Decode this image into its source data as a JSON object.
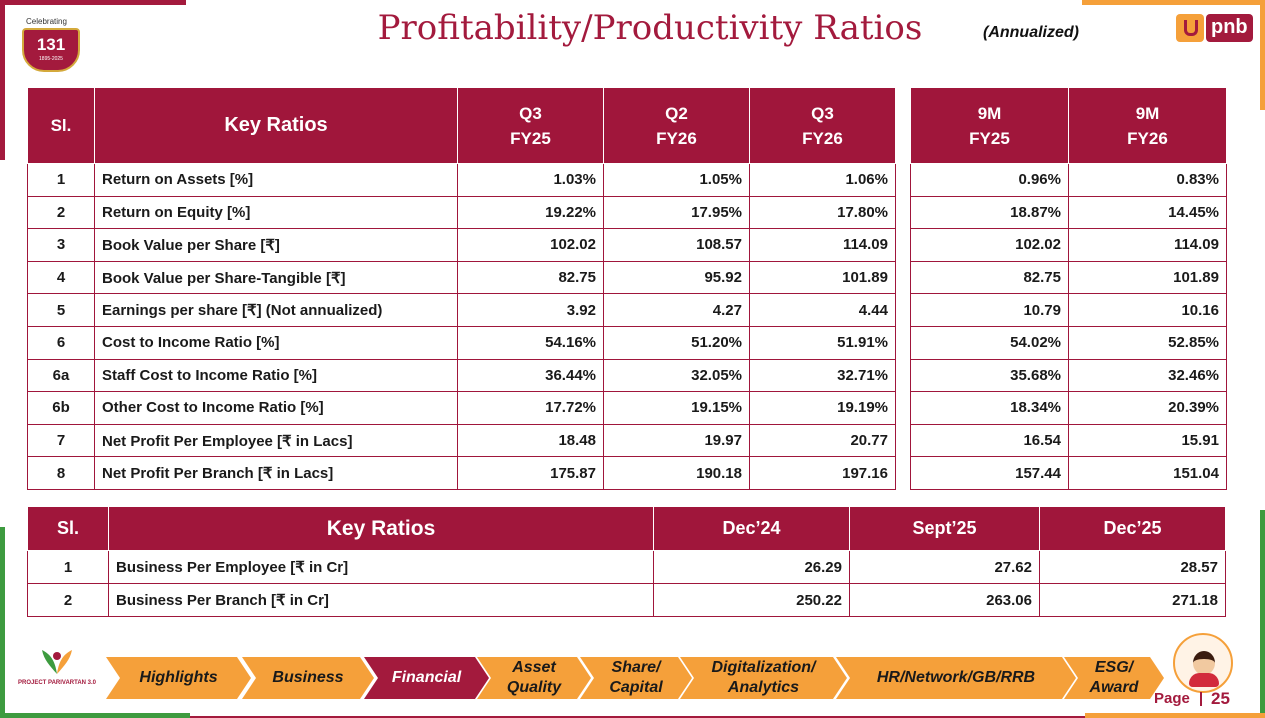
{
  "header": {
    "badge_top": "Celebrating",
    "badge_number": "131",
    "badge_years": "1895-2025",
    "title": "Profitability/Productivity Ratios",
    "note": "(Annualized)",
    "logo_text": "pnb"
  },
  "table1": {
    "headers": {
      "sl": "Sl.",
      "key": "Key Ratios",
      "c1a": "Q3",
      "c1b": "FY25",
      "c2a": "Q2",
      "c2b": "FY26",
      "c3a": "Q3",
      "c3b": "FY26",
      "c4a": "9M",
      "c4b": "FY25",
      "c5a": "9M",
      "c5b": "FY26"
    },
    "rows": [
      {
        "sl": "1",
        "name": "Return on Assets [%]",
        "v": [
          "1.03%",
          "1.05%",
          "1.06%",
          "0.96%",
          "0.83%"
        ]
      },
      {
        "sl": "2",
        "name": "Return on Equity [%]",
        "v": [
          "19.22%",
          "17.95%",
          "17.80%",
          "18.87%",
          "14.45%"
        ]
      },
      {
        "sl": "3",
        "name": "Book Value per Share [₹]",
        "v": [
          "102.02",
          "108.57",
          "114.09",
          "102.02",
          "114.09"
        ]
      },
      {
        "sl": "4",
        "name": "Book Value per Share-Tangible [₹]",
        "v": [
          "82.75",
          "95.92",
          "101.89",
          "82.75",
          "101.89"
        ]
      },
      {
        "sl": "5",
        "name": "Earnings per share [₹] (Not annualized)",
        "v": [
          "3.92",
          "4.27",
          "4.44",
          "10.79",
          "10.16"
        ]
      },
      {
        "sl": "6",
        "name": "Cost to Income Ratio [%]",
        "v": [
          "54.16%",
          "51.20%",
          "51.91%",
          "54.02%",
          "52.85%"
        ]
      },
      {
        "sl": "6a",
        "name": "Staff Cost to Income Ratio [%]",
        "v": [
          "36.44%",
          "32.05%",
          "32.71%",
          "35.68%",
          "32.46%"
        ]
      },
      {
        "sl": "6b",
        "name": "Other Cost to Income Ratio [%]",
        "v": [
          "17.72%",
          "19.15%",
          "19.19%",
          "18.34%",
          "20.39%"
        ]
      },
      {
        "sl": "7",
        "name": "Net Profit Per Employee [₹ in Lacs]",
        "v": [
          "18.48",
          "19.97",
          "20.77",
          "16.54",
          "15.91"
        ]
      },
      {
        "sl": "8",
        "name": "Net Profit Per Branch [₹ in Lacs]",
        "v": [
          "175.87",
          "190.18",
          "197.16",
          "157.44",
          "151.04"
        ]
      }
    ]
  },
  "table2": {
    "headers": {
      "sl": "Sl.",
      "key": "Key Ratios",
      "c1": "Dec’24",
      "c2": "Sept’25",
      "c3": "Dec’25"
    },
    "rows": [
      {
        "sl": "1",
        "name": "Business Per Employee [₹ in Cr]",
        "v": [
          "26.29",
          "27.62",
          "28.57"
        ]
      },
      {
        "sl": "2",
        "name": "Business Per Branch [₹ in Cr]",
        "v": [
          "250.22",
          "263.06",
          "271.18"
        ]
      }
    ]
  },
  "nav": {
    "items": [
      {
        "l1": "Highlights",
        "l2": ""
      },
      {
        "l1": "Business",
        "l2": ""
      },
      {
        "l1": "Financial",
        "l2": ""
      },
      {
        "l1": "Asset",
        "l2": "Quality"
      },
      {
        "l1": "Share/",
        "l2": "Capital"
      },
      {
        "l1": "Digitalization/",
        "l2": "Analytics"
      },
      {
        "l1": "HR/Network/GB/RRB",
        "l2": ""
      },
      {
        "l1": "ESG/",
        "l2": "Award"
      }
    ]
  },
  "footer": {
    "logo_text": "PROJECT PARIVARTAN 3.0",
    "page_label": "Page",
    "page_number": "25"
  },
  "colors": {
    "primary": "#a31a3d",
    "accent": "#f5a03a",
    "green": "#3d9b3f"
  }
}
